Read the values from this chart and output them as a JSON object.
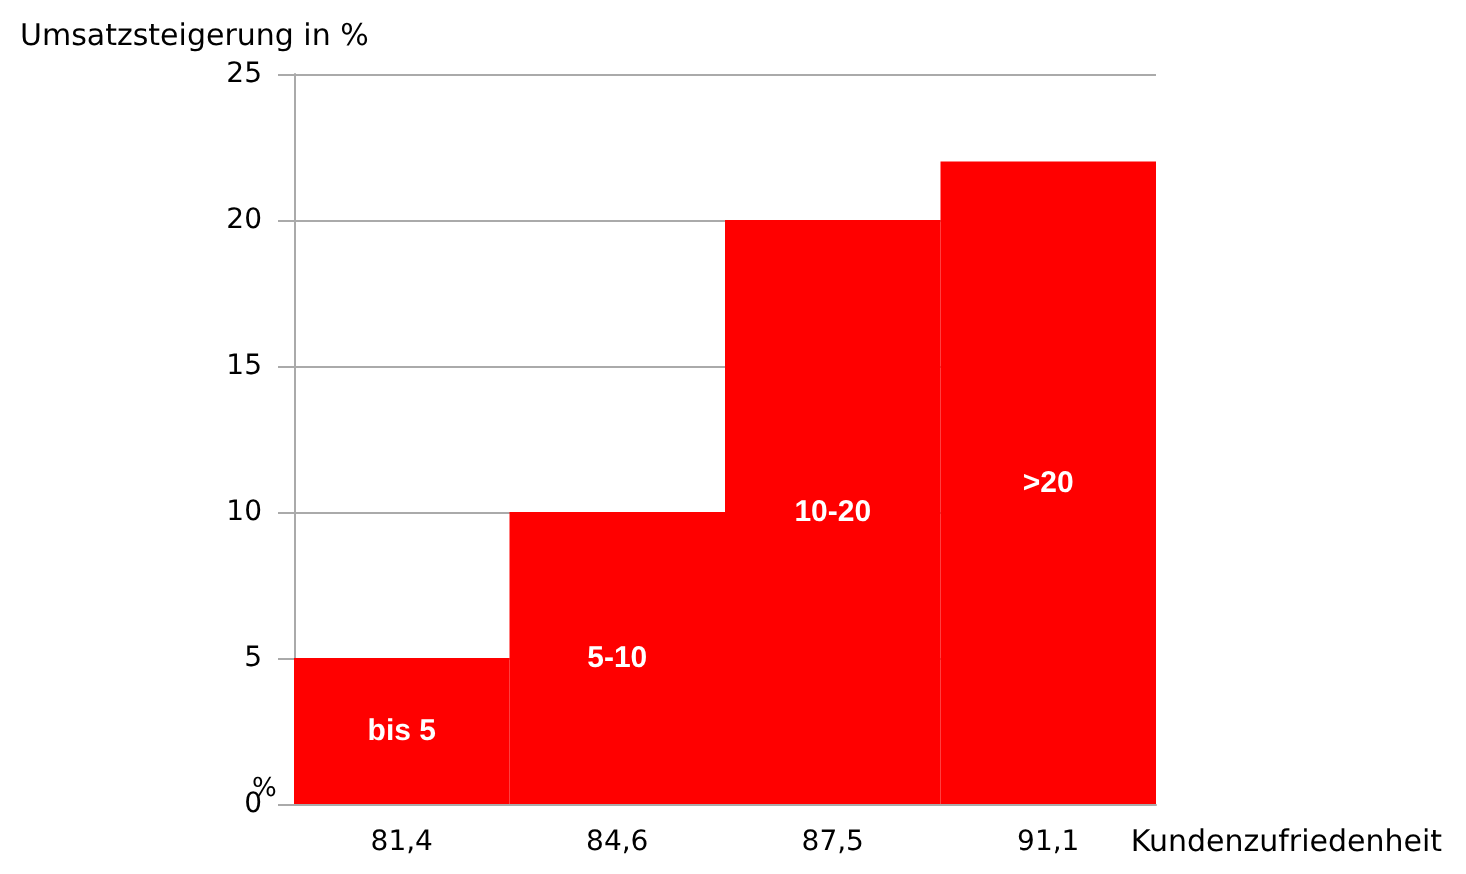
{
  "chart_data": {
    "type": "bar",
    "ylabel": "Umsatzsteigerung in %",
    "xlabel": "Kundenzufriedenheit",
    "categories": [
      "81,4",
      "84,6",
      "87,5",
      "91,1"
    ],
    "values": [
      5,
      10,
      20,
      22
    ],
    "value_labels": [
      "bis 5",
      "5-10",
      "10-20",
      ">20"
    ],
    "color": "#ff0000",
    "ylim": [
      0,
      25
    ],
    "yticks": [
      0,
      5,
      10,
      15,
      20,
      25
    ],
    "grid": "y",
    "annotations": [
      "%"
    ]
  }
}
